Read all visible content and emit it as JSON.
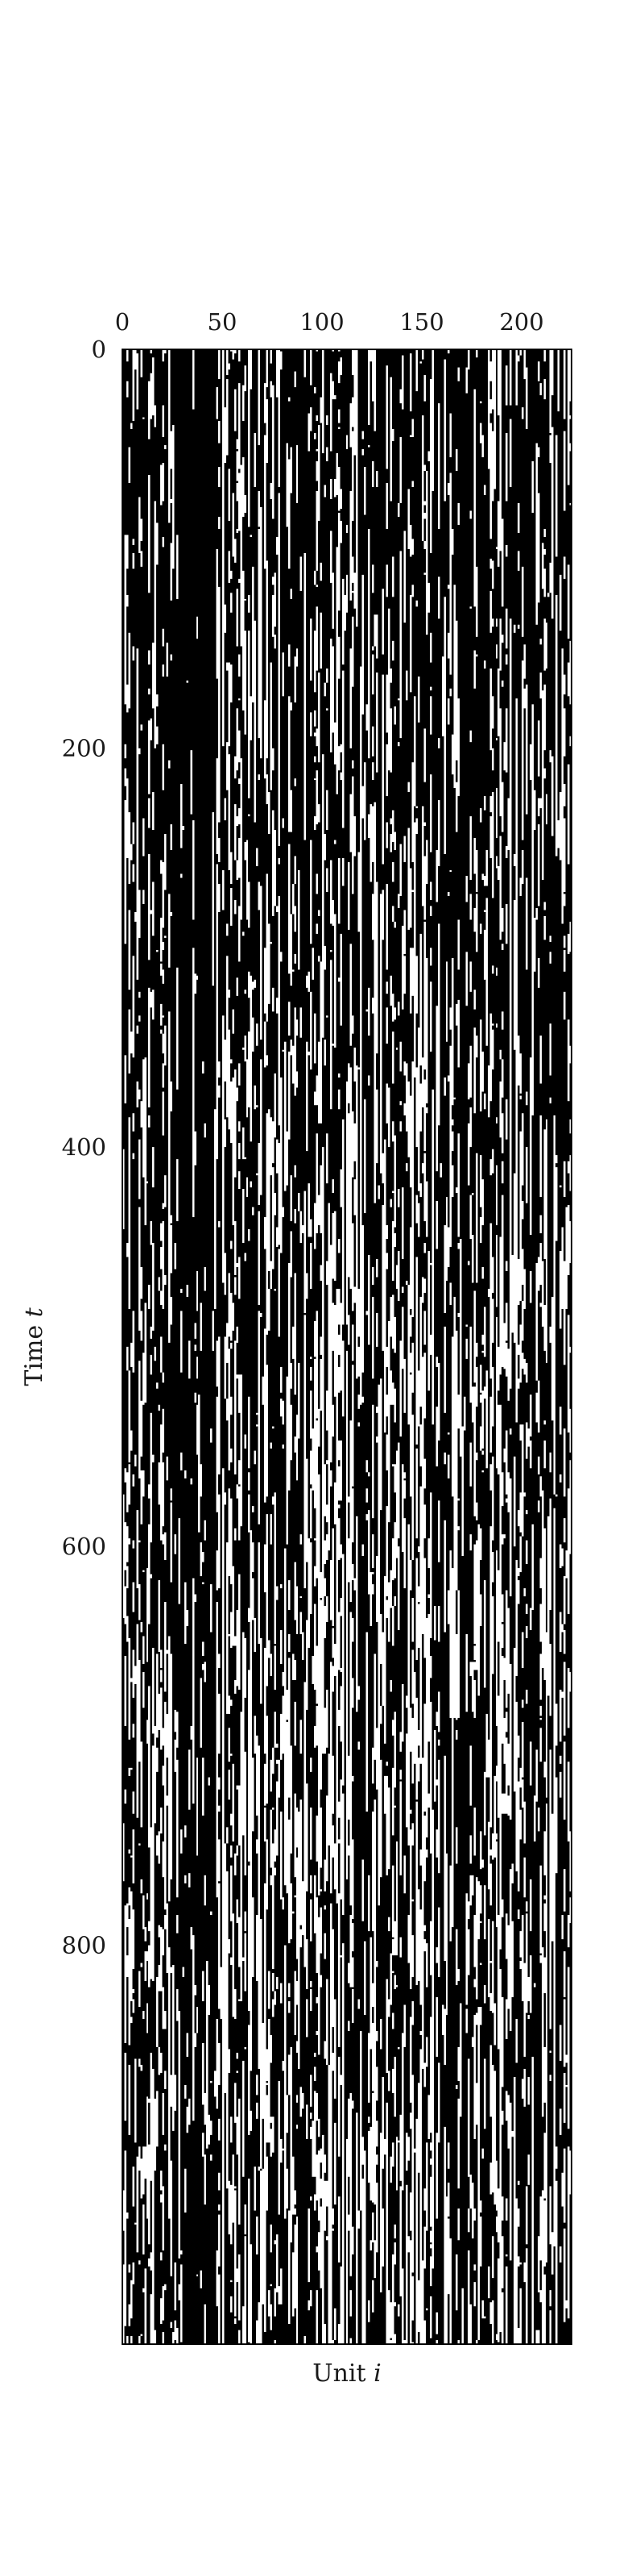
{
  "chart_data": {
    "type": "heatmap",
    "title": "",
    "xlabel": "Unit",
    "xlabel_var": "i",
    "ylabel": "Time",
    "ylabel_var": "t",
    "x_ticks": [
      0,
      50,
      100,
      150,
      200
    ],
    "y_ticks": [
      0,
      200,
      400,
      600,
      800
    ],
    "xlim": [
      0,
      225
    ],
    "ylim": [
      0,
      1000
    ],
    "y_inverted": true,
    "x_axis_position": "top",
    "grid": false,
    "legend": "none",
    "n_units": 225,
    "n_timesteps": 1000,
    "value_colors": {
      "0": "#ffffff",
      "1": "#000000"
    },
    "description_of_values": "binary raster; each unit alternates between 1 (black) and 0 (white) over time; dense dark band around units 30-45 that persists to the end"
  }
}
